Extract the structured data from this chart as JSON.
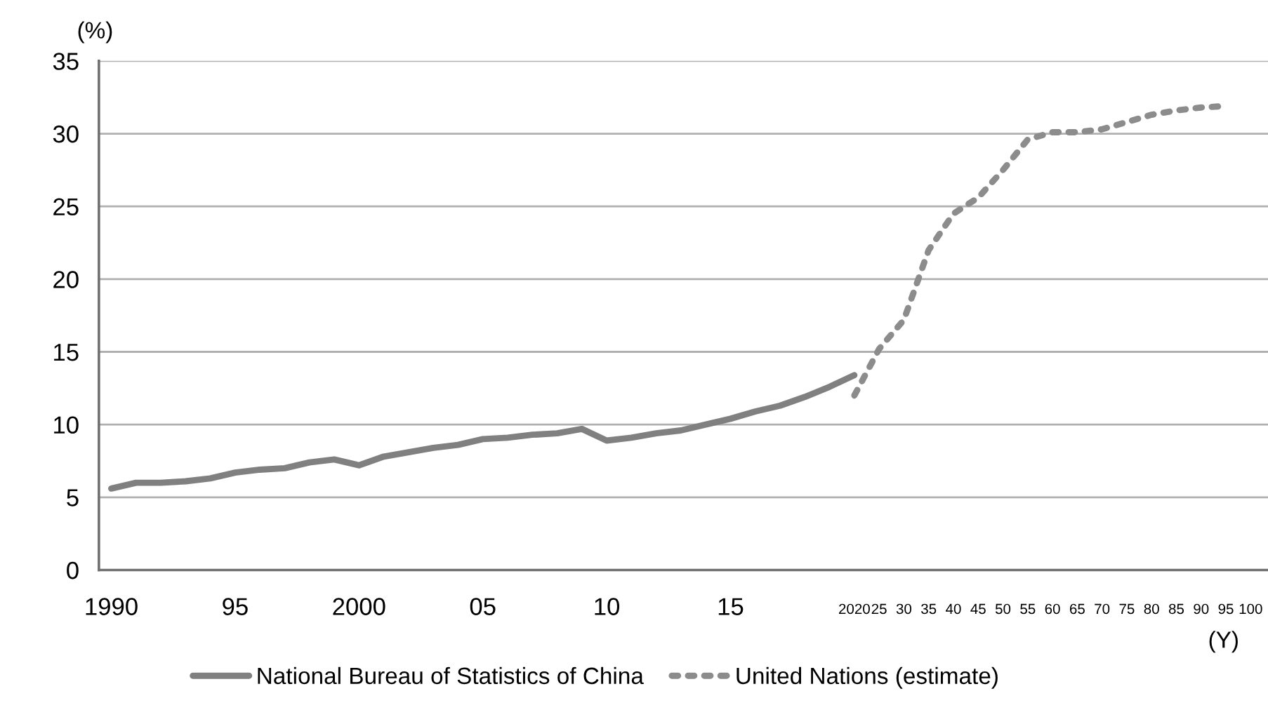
{
  "chart_data": {
    "type": "line",
    "categories": [
      "1990",
      null,
      null,
      null,
      null,
      "95",
      null,
      null,
      null,
      null,
      "2000",
      null,
      null,
      null,
      null,
      "05",
      null,
      null,
      null,
      null,
      "10",
      null,
      null,
      null,
      null,
      "15",
      null,
      null,
      null,
      null,
      "2020",
      "25",
      "30",
      "35",
      "40",
      "45",
      "50",
      "55",
      "60",
      "65",
      "70",
      "75",
      "80",
      "85",
      "90",
      "95",
      "100"
    ],
    "series": [
      {
        "name": "National Bureau of Statistics of China",
        "color": "#808080",
        "line_style": "solid",
        "values": [
          5.6,
          6.0,
          6.0,
          6.1,
          6.3,
          6.7,
          6.9,
          7.0,
          7.4,
          7.6,
          7.2,
          7.8,
          8.1,
          8.4,
          8.6,
          9.0,
          9.1,
          9.3,
          9.4,
          9.7,
          8.9,
          9.1,
          9.4,
          9.6,
          10.0,
          10.4,
          10.9,
          11.3,
          11.9,
          12.6,
          13.4,
          null,
          null,
          null,
          null,
          null,
          null,
          null,
          null,
          null,
          null,
          null,
          null,
          null,
          null,
          null,
          null
        ]
      },
      {
        "name": "United Nations (estimate)",
        "color": "#8c8c8c",
        "line_style": "dotted",
        "values": [
          null,
          null,
          null,
          null,
          null,
          null,
          null,
          null,
          null,
          null,
          null,
          null,
          null,
          null,
          null,
          null,
          null,
          null,
          null,
          null,
          null,
          null,
          null,
          null,
          null,
          null,
          null,
          null,
          null,
          null,
          12.0,
          15.2,
          17.2,
          22.0,
          24.5,
          25.6,
          27.5,
          29.6,
          30.1,
          30.1,
          30.3,
          30.8,
          31.3,
          31.6,
          31.8,
          31.9,
          null
        ]
      }
    ],
    "ylabel": "(%)",
    "xlabel": "(Y)",
    "ylim": [
      0,
      35
    ],
    "yticks": [
      0,
      5,
      10,
      15,
      20,
      25,
      30,
      35
    ],
    "grid": "y",
    "legend": "bottom",
    "marker": "none"
  }
}
